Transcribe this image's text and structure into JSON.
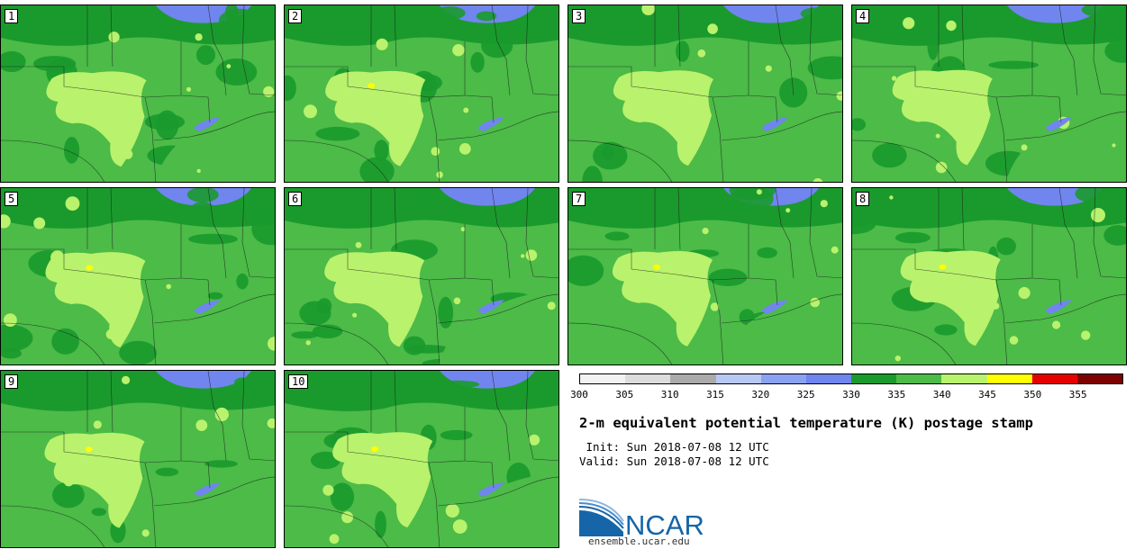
{
  "product": {
    "title": "2-m equivalent potential temperature (K) postage stamp",
    "init": " Init: Sun 2018-07-08 12 UTC",
    "valid": "Valid: Sun 2018-07-08 12 UTC"
  },
  "members": [
    "1",
    "2",
    "3",
    "4",
    "5",
    "6",
    "7",
    "8",
    "9",
    "10"
  ],
  "colorbar": {
    "colors": [
      "#f2f2f2",
      "#dcdcdc",
      "#aaaaaa",
      "#b7c8f4",
      "#8aa2f0",
      "#7185ee",
      "#1a9a2c",
      "#4cbb48",
      "#b9f26c",
      "#ffff00",
      "#e50000",
      "#7f0000"
    ],
    "ticks": [
      "300",
      "305",
      "310",
      "315",
      "320",
      "325",
      "330",
      "335",
      "340",
      "345",
      "350",
      "355"
    ]
  },
  "logo": {
    "text": "NCAR",
    "url_text": "ensemble.ucar.edu"
  },
  "map_colors": {
    "land_base": "#4cbb48",
    "dark": "#1a9a2c",
    "light": "#b9f26c",
    "lake": "#7185ee",
    "yellow": "#ffff00"
  }
}
